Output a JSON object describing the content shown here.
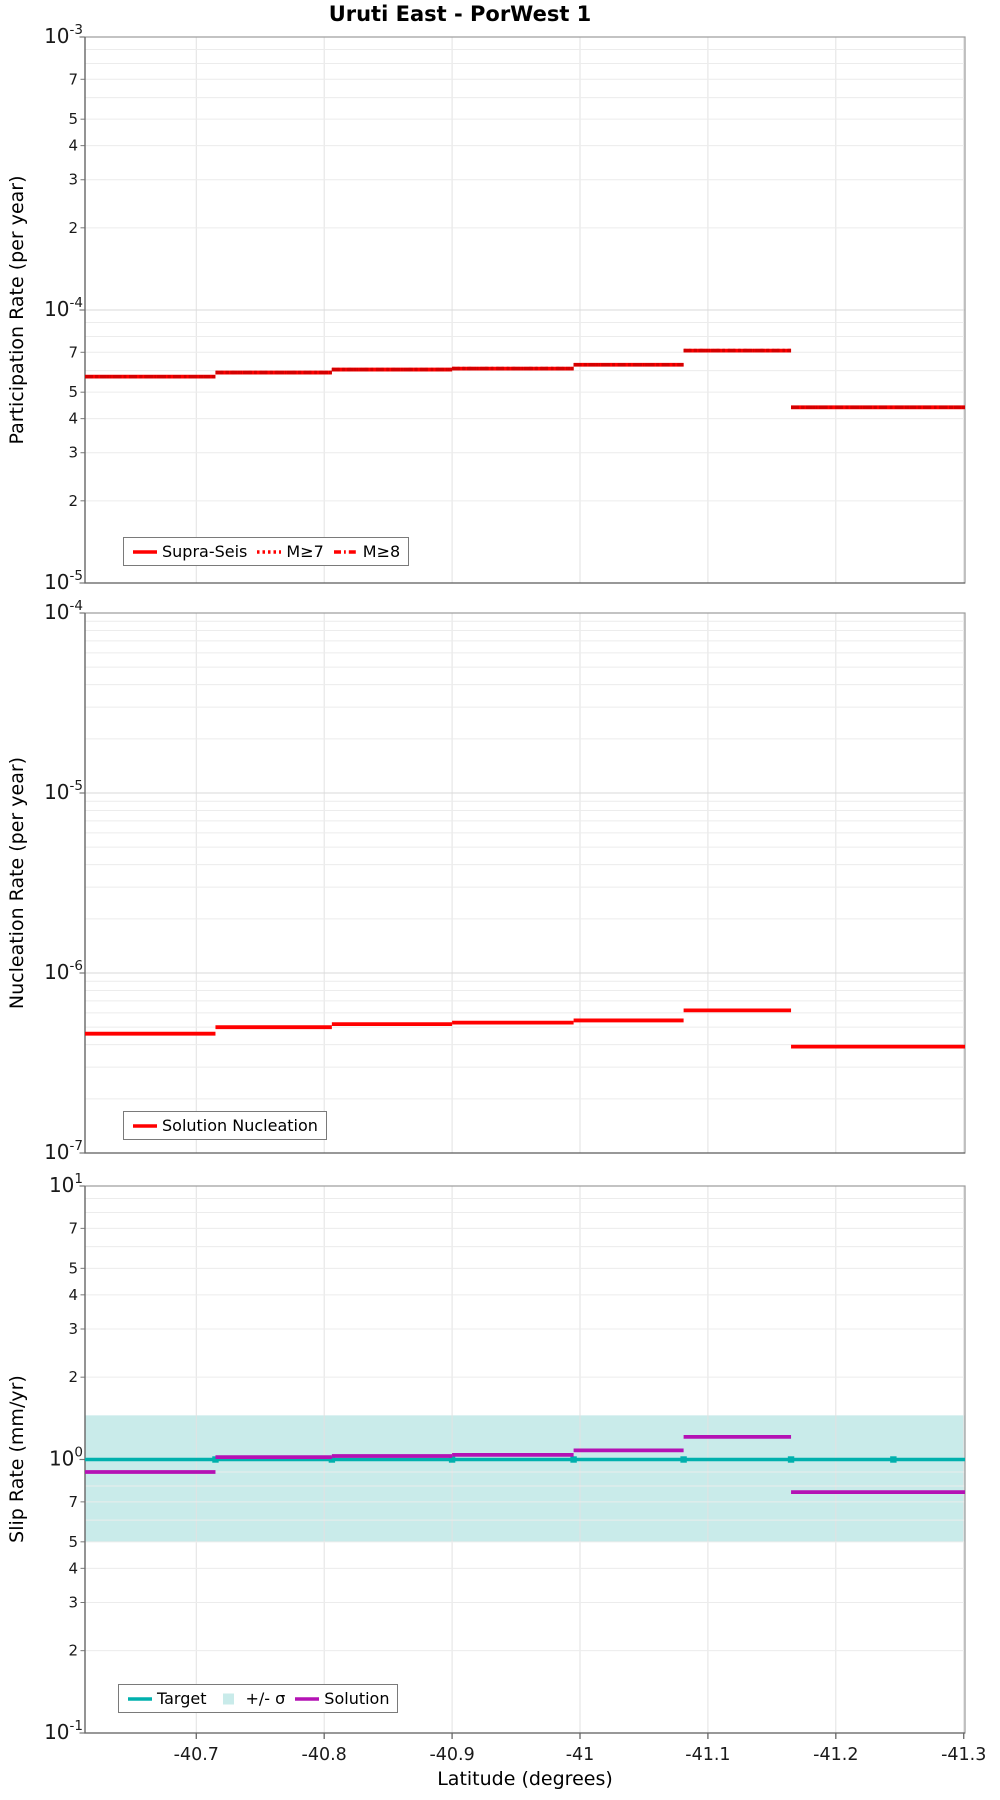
{
  "title": "Uruti East - PorWest 1",
  "x_axis": {
    "title": "Latitude (degrees)",
    "tick_labels": [
      "-40.7",
      "-40.8",
      "-40.9",
      "-41",
      "-41.1",
      "-41.2",
      "-41.3"
    ],
    "tick_values": [
      -40.7,
      -40.8,
      -40.9,
      -41.0,
      -41.1,
      -41.2,
      -41.3
    ],
    "range": [
      -40.613,
      -41.301
    ]
  },
  "colors": {
    "red": "#ff0000",
    "red_overlay": "#d40000",
    "teal": "#00b0ad",
    "band_teal": "#c9ebea",
    "purple": "#b412b4"
  },
  "chart_data": [
    {
      "type": "step",
      "title": "Participation Rate vs Latitude",
      "ylabel": "Participation Rate (per year)",
      "ylim": [
        1e-05,
        0.001
      ],
      "y_scale": "log",
      "y_decade_ticks": [
        "10^-3",
        "10^-4",
        "10^-5"
      ],
      "y_minor_tick_digits": [
        7,
        5,
        4,
        3,
        2
      ],
      "grid": true,
      "lat_edges": [
        -40.613,
        -40.715,
        -40.806,
        -40.9,
        -40.995,
        -41.081,
        -41.165,
        -41.301
      ],
      "series": [
        {
          "name": "Supra-Seis",
          "style": "solid",
          "color": "#ff0000",
          "values": [
            5.7e-05,
            5.9e-05,
            6.05e-05,
            6.1e-05,
            6.3e-05,
            7.1e-05,
            4.4e-05
          ]
        },
        {
          "name": "M≥7",
          "style": "dotted",
          "color": "#d40000",
          "coincident_with": "Supra-Seis",
          "values": [
            5.7e-05,
            5.9e-05,
            6.05e-05,
            6.1e-05,
            6.3e-05,
            7.1e-05,
            4.4e-05
          ]
        },
        {
          "name": "M≥8",
          "style": "dashdot",
          "color": "#d40000",
          "coincident_with": "Supra-Seis",
          "values": [
            5.7e-05,
            5.9e-05,
            6.05e-05,
            6.1e-05,
            6.3e-05,
            7.1e-05,
            4.4e-05
          ]
        }
      ],
      "legend": [
        {
          "label": "Supra-Seis",
          "swatch": "line-solid",
          "color": "#ff0000"
        },
        {
          "label": "M≥7",
          "swatch": "line-dotted",
          "color": "#ff0000"
        },
        {
          "label": "M≥8",
          "swatch": "line-dashdot",
          "color": "#ff0000"
        }
      ],
      "legend_position": "bottom-left"
    },
    {
      "type": "step",
      "title": "Nucleation Rate vs Latitude",
      "ylabel": "Nucleation Rate (per year)",
      "ylim": [
        1e-07,
        0.0001
      ],
      "y_scale": "log",
      "y_decade_ticks": [
        "10^-4",
        "10^-5",
        "10^-6",
        "10^-7"
      ],
      "y_minor_tick_digits": [],
      "grid": true,
      "lat_edges": [
        -40.613,
        -40.715,
        -40.806,
        -40.9,
        -40.995,
        -41.081,
        -41.165,
        -41.301
      ],
      "series": [
        {
          "name": "Solution Nucleation",
          "style": "solid",
          "color": "#ff0000",
          "values": [
            4.6e-07,
            5e-07,
            5.2e-07,
            5.3e-07,
            5.45e-07,
            6.2e-07,
            3.9e-07
          ]
        }
      ],
      "legend": [
        {
          "label": "Solution Nucleation",
          "swatch": "line-solid",
          "color": "#ff0000"
        }
      ],
      "legend_position": "bottom-left"
    },
    {
      "type": "step",
      "title": "Slip Rate vs Latitude",
      "ylabel": "Slip Rate (mm/yr)",
      "ylim": [
        0.1,
        10
      ],
      "y_scale": "log",
      "y_decade_ticks": [
        "10^1",
        "10^0",
        "10^-1"
      ],
      "y_minor_tick_digits": [
        7,
        5,
        4,
        3,
        2
      ],
      "grid": true,
      "lat_edges": [
        -40.613,
        -40.715,
        -40.806,
        -40.9,
        -40.995,
        -41.081,
        -41.165,
        -41.301
      ],
      "band": {
        "label": "+/- σ",
        "range": [
          0.5,
          1.45
        ],
        "color": "#c9ebea"
      },
      "target": {
        "label": "Target",
        "value": 1.0,
        "color": "#00b0ad",
        "marker_lats": [
          -40.715,
          -40.806,
          -40.9,
          -40.995,
          -41.081,
          -41.165,
          -41.245
        ]
      },
      "series": [
        {
          "name": "Solution",
          "style": "solid",
          "color": "#b412b4",
          "values": [
            0.9,
            1.02,
            1.03,
            1.04,
            1.08,
            1.21,
            0.76
          ]
        }
      ],
      "legend": [
        {
          "label": "Target",
          "swatch": "line-solid",
          "color": "#00b0ad"
        },
        {
          "label": "+/- σ",
          "swatch": "square",
          "color": "#c9ebea"
        },
        {
          "label": "Solution",
          "swatch": "line-solid",
          "color": "#b412b4"
        }
      ],
      "legend_position": "bottom-left"
    }
  ]
}
